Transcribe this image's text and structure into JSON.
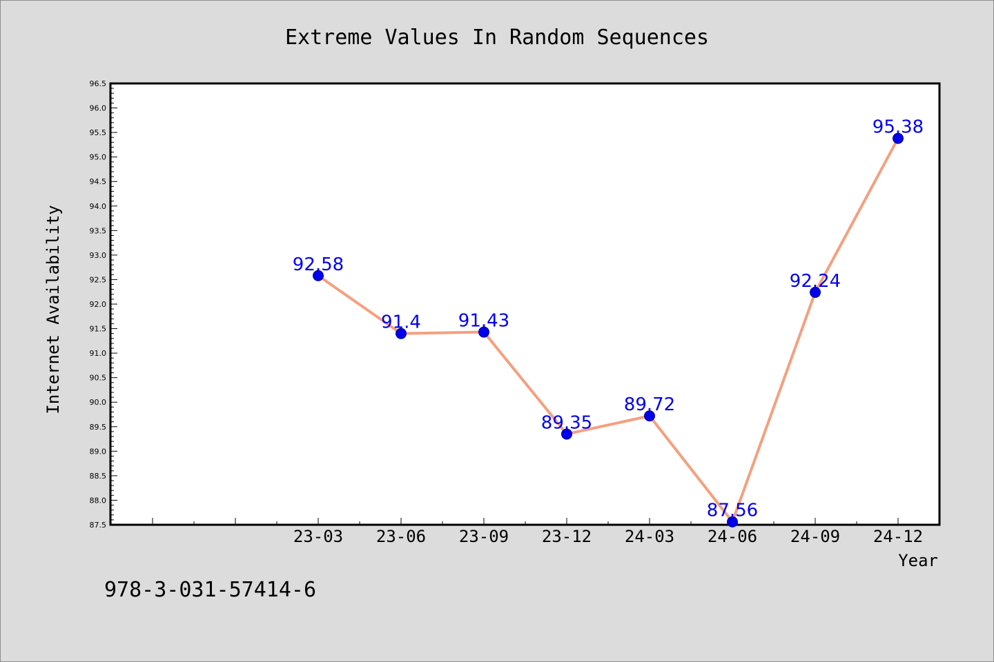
{
  "chart_data": {
    "type": "line",
    "title": "Extreme Values In Random Sequences",
    "xlabel": "Year",
    "ylabel": "Internet Availability",
    "categories": [
      "23-03",
      "23-06",
      "23-09",
      "23-12",
      "24-03",
      "24-06",
      "24-09",
      "24-12"
    ],
    "series": [
      {
        "values": [
          92.58,
          91.4,
          91.43,
          89.35,
          89.72,
          87.56,
          92.24,
          95.38
        ]
      }
    ],
    "data_labels": [
      "92.58",
      "91.4",
      "91.43",
      "89.35",
      "89.72",
      "87.56",
      "92.24",
      "95.38"
    ],
    "ylim": [
      87.5,
      96.5
    ],
    "ytick_labels": [
      "87.5",
      "88.0",
      "88.5",
      "89.0",
      "89.5",
      "90.0",
      "90.5",
      "91.0",
      "91.5",
      "92.0",
      "92.5",
      "93.0",
      "93.5",
      "94.0",
      "94.5",
      "95.0",
      "95.5",
      "96.0",
      "96.5"
    ],
    "grid": false,
    "line_color": "#f4a07e",
    "marker_color": "#0000ee",
    "label_color": "#0000ee"
  },
  "footer_text": "978-3-031-57414-6"
}
